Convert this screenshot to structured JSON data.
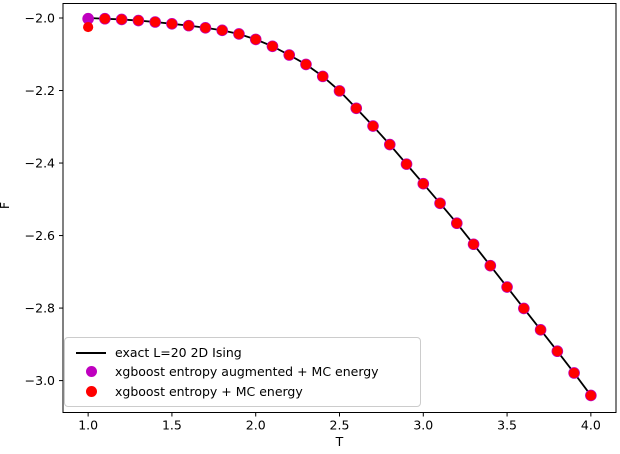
{
  "chart_data": {
    "type": "line+scatter",
    "title": "",
    "xlabel": "T",
    "ylabel": "F",
    "xlim": [
      0.85,
      4.15
    ],
    "ylim": [
      -3.088,
      -1.96
    ],
    "grid": false,
    "x_ticks": [
      1.0,
      1.5,
      2.0,
      2.5,
      3.0,
      3.5,
      4.0
    ],
    "x_tick_labels": [
      "1.0",
      "1.5",
      "2.0",
      "2.5",
      "3.0",
      "3.5",
      "4.0"
    ],
    "y_ticks": [
      -3.0,
      -2.8,
      -2.6,
      -2.4,
      -2.2,
      -2.0
    ],
    "y_tick_labels": [
      "−3.0",
      "−2.8",
      "−2.6",
      "−2.4",
      "−2.2",
      "−2.0"
    ],
    "x": [
      1.0,
      1.1,
      1.2,
      1.3,
      1.4,
      1.5,
      1.6,
      1.7,
      1.8,
      1.9,
      2.0,
      2.1,
      2.2,
      2.3,
      2.4,
      2.5,
      2.6,
      2.7,
      2.8,
      2.9,
      3.0,
      3.1,
      3.2,
      3.3,
      3.4,
      3.5,
      3.6,
      3.7,
      3.8,
      3.9,
      4.0
    ],
    "series": [
      {
        "name": "exact L=20 2D Ising",
        "type": "line",
        "color": "#000000",
        "values": [
          -2.0,
          -2.002,
          -2.004,
          -2.007,
          -2.011,
          -2.016,
          -2.021,
          -2.027,
          -2.034,
          -2.044,
          -2.059,
          -2.078,
          -2.102,
          -2.128,
          -2.161,
          -2.201,
          -2.249,
          -2.298,
          -2.349,
          -2.403,
          -2.457,
          -2.511,
          -2.566,
          -2.624,
          -2.683,
          -2.742,
          -2.801,
          -2.86,
          -2.919,
          -2.979,
          -3.041
        ]
      },
      {
        "name": "xgboost entropy augmented + MC energy",
        "type": "scatter",
        "color": "#bf00bf",
        "values": [
          -2.002,
          -2.002,
          -2.004,
          -2.007,
          -2.011,
          -2.016,
          -2.021,
          -2.027,
          -2.034,
          -2.044,
          -2.059,
          -2.078,
          -2.102,
          -2.128,
          -2.161,
          -2.201,
          -2.249,
          -2.298,
          -2.349,
          -2.403,
          -2.457,
          -2.511,
          -2.566,
          -2.624,
          -2.683,
          -2.742,
          -2.801,
          -2.86,
          -2.919,
          -2.979,
          -3.041
        ]
      },
      {
        "name": "xgboost entropy + MC energy",
        "type": "scatter",
        "color": "#ff0000",
        "values": [
          -2.025,
          -2.002,
          -2.004,
          -2.007,
          -2.011,
          -2.016,
          -2.021,
          -2.027,
          -2.034,
          -2.044,
          -2.059,
          -2.078,
          -2.102,
          -2.128,
          -2.161,
          -2.201,
          -2.249,
          -2.298,
          -2.349,
          -2.403,
          -2.457,
          -2.511,
          -2.566,
          -2.624,
          -2.683,
          -2.742,
          -2.801,
          -2.86,
          -2.919,
          -2.979,
          -3.041
        ]
      }
    ],
    "legend": {
      "position": "lower left"
    }
  },
  "colors": {
    "background": "#ffffff",
    "spine": "#000000",
    "tick": "#000000",
    "legend_border": "#cccccc"
  }
}
